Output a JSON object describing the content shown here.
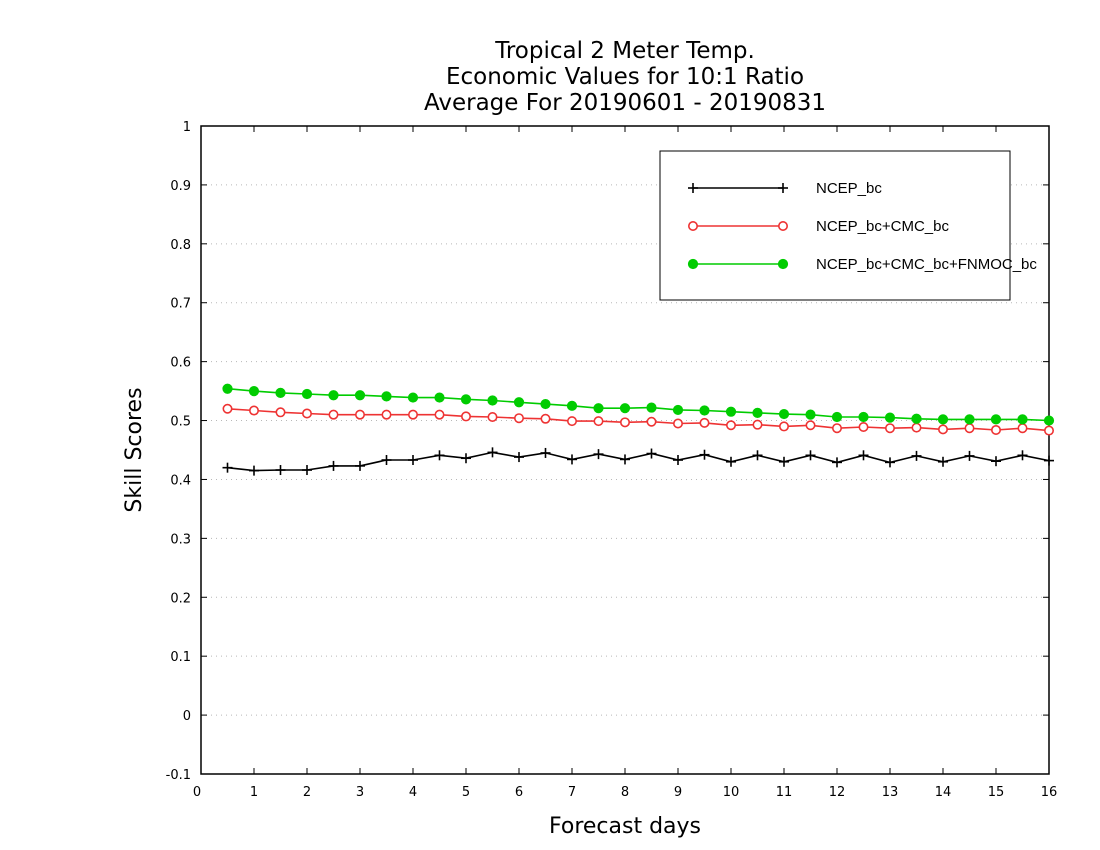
{
  "chart_data": {
    "type": "line",
    "title_lines": [
      "Tropical 2 Meter Temp.",
      "Economic Values for 10:1 Ratio",
      "Average For 20190601 - 20190831"
    ],
    "xlabel": "Forecast days",
    "ylabel": "Skill Scores",
    "xlim": [
      0,
      16
    ],
    "ylim": [
      -0.1,
      1
    ],
    "x_ticks": [
      0,
      1,
      2,
      3,
      4,
      5,
      6,
      7,
      8,
      9,
      10,
      11,
      12,
      13,
      14,
      15,
      16
    ],
    "y_ticks": [
      -0.1,
      0,
      0.1,
      0.2,
      0.3,
      0.4,
      0.5,
      0.6,
      0.7,
      0.8,
      0.9,
      1
    ],
    "y_tick_labels": [
      "-0.1",
      "0",
      "0.1",
      "0.2",
      "0.3",
      "0.4",
      "0.5",
      "0.6",
      "0.7",
      "0.8",
      "0.9",
      "1"
    ],
    "grid": "horizontal dotted",
    "legend_position": "top-right",
    "x": [
      0.5,
      1.0,
      1.5,
      2.0,
      2.5,
      3.0,
      3.5,
      4.0,
      4.5,
      5.0,
      5.5,
      6.0,
      6.5,
      7.0,
      7.5,
      8.0,
      8.5,
      9.0,
      9.5,
      10.0,
      10.5,
      11.0,
      11.5,
      12.0,
      12.5,
      13.0,
      13.5,
      14.0,
      14.5,
      15.0,
      15.5,
      16.0
    ],
    "series": [
      {
        "name": "NCEP_bc",
        "color": "#000000",
        "marker": "plus",
        "values": [
          0.42,
          0.415,
          0.416,
          0.416,
          0.423,
          0.423,
          0.433,
          0.433,
          0.441,
          0.436,
          0.446,
          0.438,
          0.445,
          0.434,
          0.443,
          0.434,
          0.444,
          0.433,
          0.442,
          0.43,
          0.441,
          0.43,
          0.441,
          0.429,
          0.441,
          0.429,
          0.44,
          0.43,
          0.44,
          0.431,
          0.441,
          0.432
        ]
      },
      {
        "name": "NCEP_bc+CMC_bc",
        "color": "#ee3333",
        "marker": "open-circle",
        "values": [
          0.52,
          0.517,
          0.514,
          0.512,
          0.51,
          0.51,
          0.51,
          0.51,
          0.51,
          0.507,
          0.506,
          0.504,
          0.503,
          0.499,
          0.499,
          0.497,
          0.498,
          0.495,
          0.496,
          0.492,
          0.493,
          0.49,
          0.492,
          0.487,
          0.489,
          0.487,
          0.488,
          0.485,
          0.487,
          0.484,
          0.487,
          0.483
        ]
      },
      {
        "name": "NCEP_bc+CMC_bc+FNMOC_bc",
        "color": "#00cc00",
        "marker": "filled-circle",
        "values": [
          0.554,
          0.55,
          0.547,
          0.545,
          0.543,
          0.543,
          0.541,
          0.539,
          0.539,
          0.536,
          0.534,
          0.531,
          0.528,
          0.525,
          0.521,
          0.521,
          0.522,
          0.518,
          0.517,
          0.515,
          0.513,
          0.511,
          0.51,
          0.506,
          0.506,
          0.505,
          0.503,
          0.502,
          0.502,
          0.502,
          0.502,
          0.5
        ]
      }
    ]
  }
}
